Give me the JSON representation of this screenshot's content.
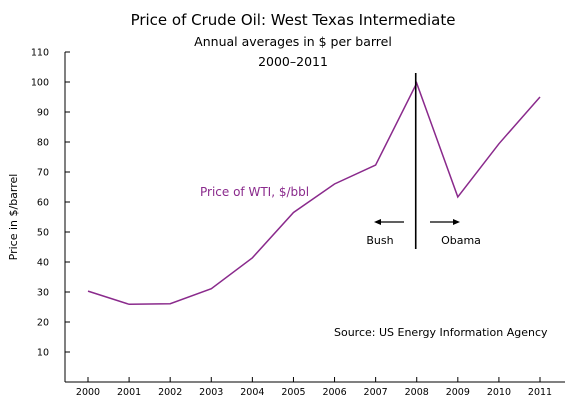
{
  "chart_data": {
    "type": "line",
    "title": "Price of Crude Oil:  West Texas Intermediate",
    "subtitle": "Annual averages in $ per barrel",
    "period": "2000–2011",
    "xlabel": "",
    "ylabel": "Price in $/barrel",
    "categories": [
      "2000",
      "2001",
      "2002",
      "2003",
      "2004",
      "2005",
      "2006",
      "2007",
      "2008",
      "2009",
      "2010",
      "2011"
    ],
    "ylim": [
      0,
      110
    ],
    "yticks": [
      10,
      20,
      30,
      40,
      50,
      60,
      70,
      80,
      90,
      100,
      110
    ],
    "grid": false,
    "series": [
      {
        "name": "Price of WTI, $/bbl",
        "color": "#8a2a8c",
        "values": [
          30.3,
          25.9,
          26.1,
          31.1,
          41.4,
          56.5,
          66.0,
          72.3,
          99.6,
          61.7,
          79.4,
          95.0
        ]
      }
    ],
    "annotations": {
      "divider_year": "2008",
      "left_label": "Bush",
      "right_label": "Obama",
      "source": "Source: US Energy Information Agency"
    }
  }
}
